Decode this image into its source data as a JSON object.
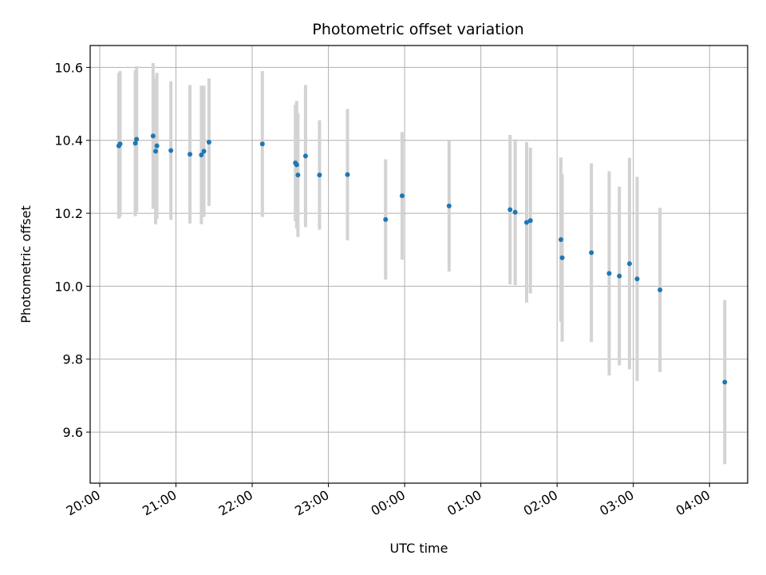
{
  "chart_data": {
    "type": "scatter",
    "title": "Photometric offset variation",
    "xlabel": "UTC time",
    "ylabel": "Photometric offset",
    "xlim": [
      "20:00",
      "04:30"
    ],
    "ylim": [
      9.46,
      10.66
    ],
    "grid": true,
    "x_ticks": [
      "20:00",
      "21:00",
      "22:00",
      "23:00",
      "00:00",
      "01:00",
      "02:00",
      "03:00",
      "04:00"
    ],
    "y_ticks": [
      "9.6",
      "9.8",
      "10.0",
      "10.2",
      "10.4",
      "10.6"
    ],
    "colors": {
      "point": "#1f77b4",
      "errorbar": "#d3d3d3",
      "grid": "#b0b0b0"
    },
    "points": [
      {
        "t": "20:15",
        "y": 10.385,
        "err": 0.2
      },
      {
        "t": "20:16",
        "y": 10.39,
        "err": 0.2
      },
      {
        "t": "20:28",
        "y": 10.392,
        "err": 0.2
      },
      {
        "t": "20:29",
        "y": 10.403,
        "err": 0.2
      },
      {
        "t": "20:42",
        "y": 10.412,
        "err": 0.2
      },
      {
        "t": "20:44",
        "y": 10.37,
        "err": 0.2
      },
      {
        "t": "20:45",
        "y": 10.385,
        "err": 0.2
      },
      {
        "t": "20:56",
        "y": 10.372,
        "err": 0.19
      },
      {
        "t": "21:11",
        "y": 10.362,
        "err": 0.19
      },
      {
        "t": "21:20",
        "y": 10.36,
        "err": 0.19
      },
      {
        "t": "21:22",
        "y": 10.37,
        "err": 0.18
      },
      {
        "t": "21:26",
        "y": 10.395,
        "err": 0.175
      },
      {
        "t": "22:08",
        "y": 10.39,
        "err": 0.2
      },
      {
        "t": "22:34",
        "y": 10.338,
        "err": 0.16
      },
      {
        "t": "22:35",
        "y": 10.333,
        "err": 0.175
      },
      {
        "t": "22:36",
        "y": 10.305,
        "err": 0.17
      },
      {
        "t": "22:42",
        "y": 10.357,
        "err": 0.195
      },
      {
        "t": "22:53",
        "y": 10.305,
        "err": 0.15
      },
      {
        "t": "23:15",
        "y": 10.306,
        "err": 0.18
      },
      {
        "t": "23:45",
        "y": 10.183,
        "err": 0.165
      },
      {
        "t": "23:58",
        "y": 10.248,
        "err": 0.175
      },
      {
        "t": "00:35",
        "y": 10.22,
        "err": 0.18
      },
      {
        "t": "01:23",
        "y": 10.21,
        "err": 0.205
      },
      {
        "t": "01:27",
        "y": 10.203,
        "err": 0.2
      },
      {
        "t": "01:36",
        "y": 10.175,
        "err": 0.22
      },
      {
        "t": "01:39",
        "y": 10.18,
        "err": 0.2
      },
      {
        "t": "02:03",
        "y": 10.128,
        "err": 0.225
      },
      {
        "t": "02:04",
        "y": 10.078,
        "err": 0.23
      },
      {
        "t": "02:27",
        "y": 10.092,
        "err": 0.245
      },
      {
        "t": "02:41",
        "y": 10.035,
        "err": 0.28
      },
      {
        "t": "02:49",
        "y": 10.028,
        "err": 0.245
      },
      {
        "t": "02:57",
        "y": 10.062,
        "err": 0.29
      },
      {
        "t": "03:03",
        "y": 10.02,
        "err": 0.28
      },
      {
        "t": "03:21",
        "y": 9.99,
        "err": 0.225
      },
      {
        "t": "04:12",
        "y": 9.737,
        "err": 0.225
      }
    ]
  }
}
